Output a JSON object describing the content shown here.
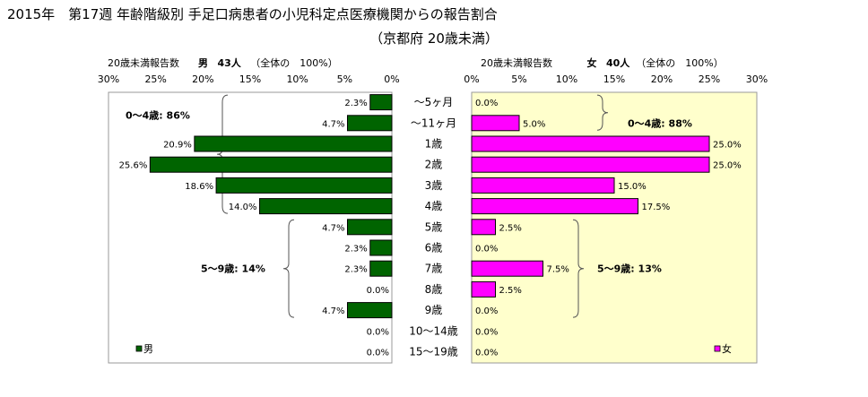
{
  "title": "2015年　第17週 年齢階級別 手足口病患者の小児科定点医療機関からの報告割合",
  "subtitle": "（京都府 20歳未満）",
  "male_header": {
    "lead": "20歳未満報告数",
    "name": "男",
    "count": "43人",
    "note": "（全体の　100%）"
  },
  "female_header": {
    "lead": "20歳未満報告数",
    "name": "女",
    "count": "40人",
    "note": "（全体の　100%）"
  },
  "male_legend": "男",
  "female_legend": "女",
  "male_groups": [
    {
      "label": "0～4歳: 86%"
    },
    {
      "label": "5～9歳: 14%"
    }
  ],
  "female_groups": [
    {
      "label": "0～4歳: 88%"
    },
    {
      "label": "5～9歳: 13%"
    }
  ],
  "colors": {
    "male": "#006400",
    "female": "#ff00ff",
    "female_panel_bg": "#ffffcc"
  },
  "chart_data": {
    "type": "bar",
    "categories": [
      "～5ヶ月",
      "～11ヶ月",
      "1歳",
      "2歳",
      "3歳",
      "4歳",
      "5歳",
      "6歳",
      "7歳",
      "8歳",
      "9歳",
      "10～14歳",
      "15～19歳"
    ],
    "series": [
      {
        "name": "男",
        "values": [
          2.3,
          4.7,
          20.9,
          25.6,
          18.6,
          14.0,
          4.7,
          2.3,
          2.3,
          0.0,
          4.7,
          0.0,
          0.0
        ],
        "labels": [
          "2.3%",
          "4.7%",
          "20.9%",
          "25.6%",
          "18.6%",
          "14.0%",
          "4.7%",
          "2.3%",
          "2.3%",
          "0.0%",
          "4.7%",
          "0.0%",
          "0.0%"
        ]
      },
      {
        "name": "女",
        "values": [
          0.0,
          5.0,
          25.0,
          25.0,
          15.0,
          17.5,
          2.5,
          0.0,
          7.5,
          2.5,
          0.0,
          0.0,
          0.0
        ],
        "labels": [
          "0.0%",
          "5.0%",
          "25.0%",
          "25.0%",
          "15.0%",
          "17.5%",
          "2.5%",
          "0.0%",
          "7.5%",
          "2.5%",
          "0.0%",
          "0.0%",
          "0.0%"
        ]
      }
    ],
    "xlim": [
      0,
      30
    ],
    "ticks": [
      "30%",
      "25%",
      "20%",
      "15%",
      "10%",
      "5%",
      "0%"
    ],
    "ticks_female": [
      "0%",
      "5%",
      "10%",
      "15%",
      "20%",
      "25%",
      "30%"
    ]
  }
}
